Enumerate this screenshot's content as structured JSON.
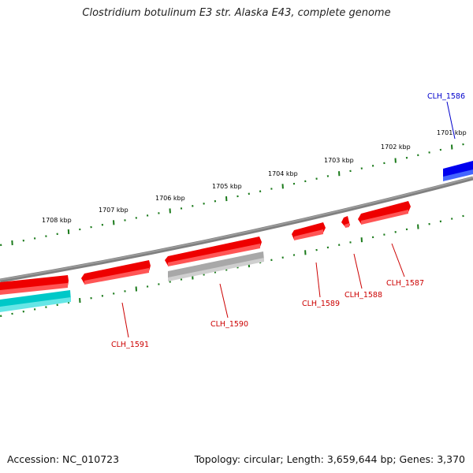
{
  "title": "Clostridium botulinum E3 str. Alaska E43, complete genome",
  "footer": {
    "accession": "Accession: NC_010723",
    "summary": "Topology: circular; Length: 3,659,644 bp; Genes: 3,370"
  },
  "colors": {
    "backbone": "#808080",
    "tick": "#1a7a1a",
    "forward_gene": "#ff0000",
    "reverse_gene": "#ff0000",
    "cyan_gene": "#00cccc",
    "blue_gene": "#0000ee",
    "gray_gene": "#b0b0b0",
    "gene_label": "#cc0000",
    "blue_label": "#0000cc"
  },
  "kbp_labels": [
    "1701 kbp",
    "1702 kbp",
    "1703 kbp",
    "1704 kbp",
    "1705 kbp",
    "1706 kbp",
    "1707 kbp",
    "1708 kbp"
  ],
  "gene_labels": [
    {
      "name": "CLH_1586",
      "color": "blue"
    },
    {
      "name": "CLH_1587",
      "color": "red"
    },
    {
      "name": "CLH_1588",
      "color": "red"
    },
    {
      "name": "CLH_1589",
      "color": "red"
    },
    {
      "name": "CLH_1590",
      "color": "red"
    },
    {
      "name": "CLH_1591",
      "color": "red"
    }
  ]
}
